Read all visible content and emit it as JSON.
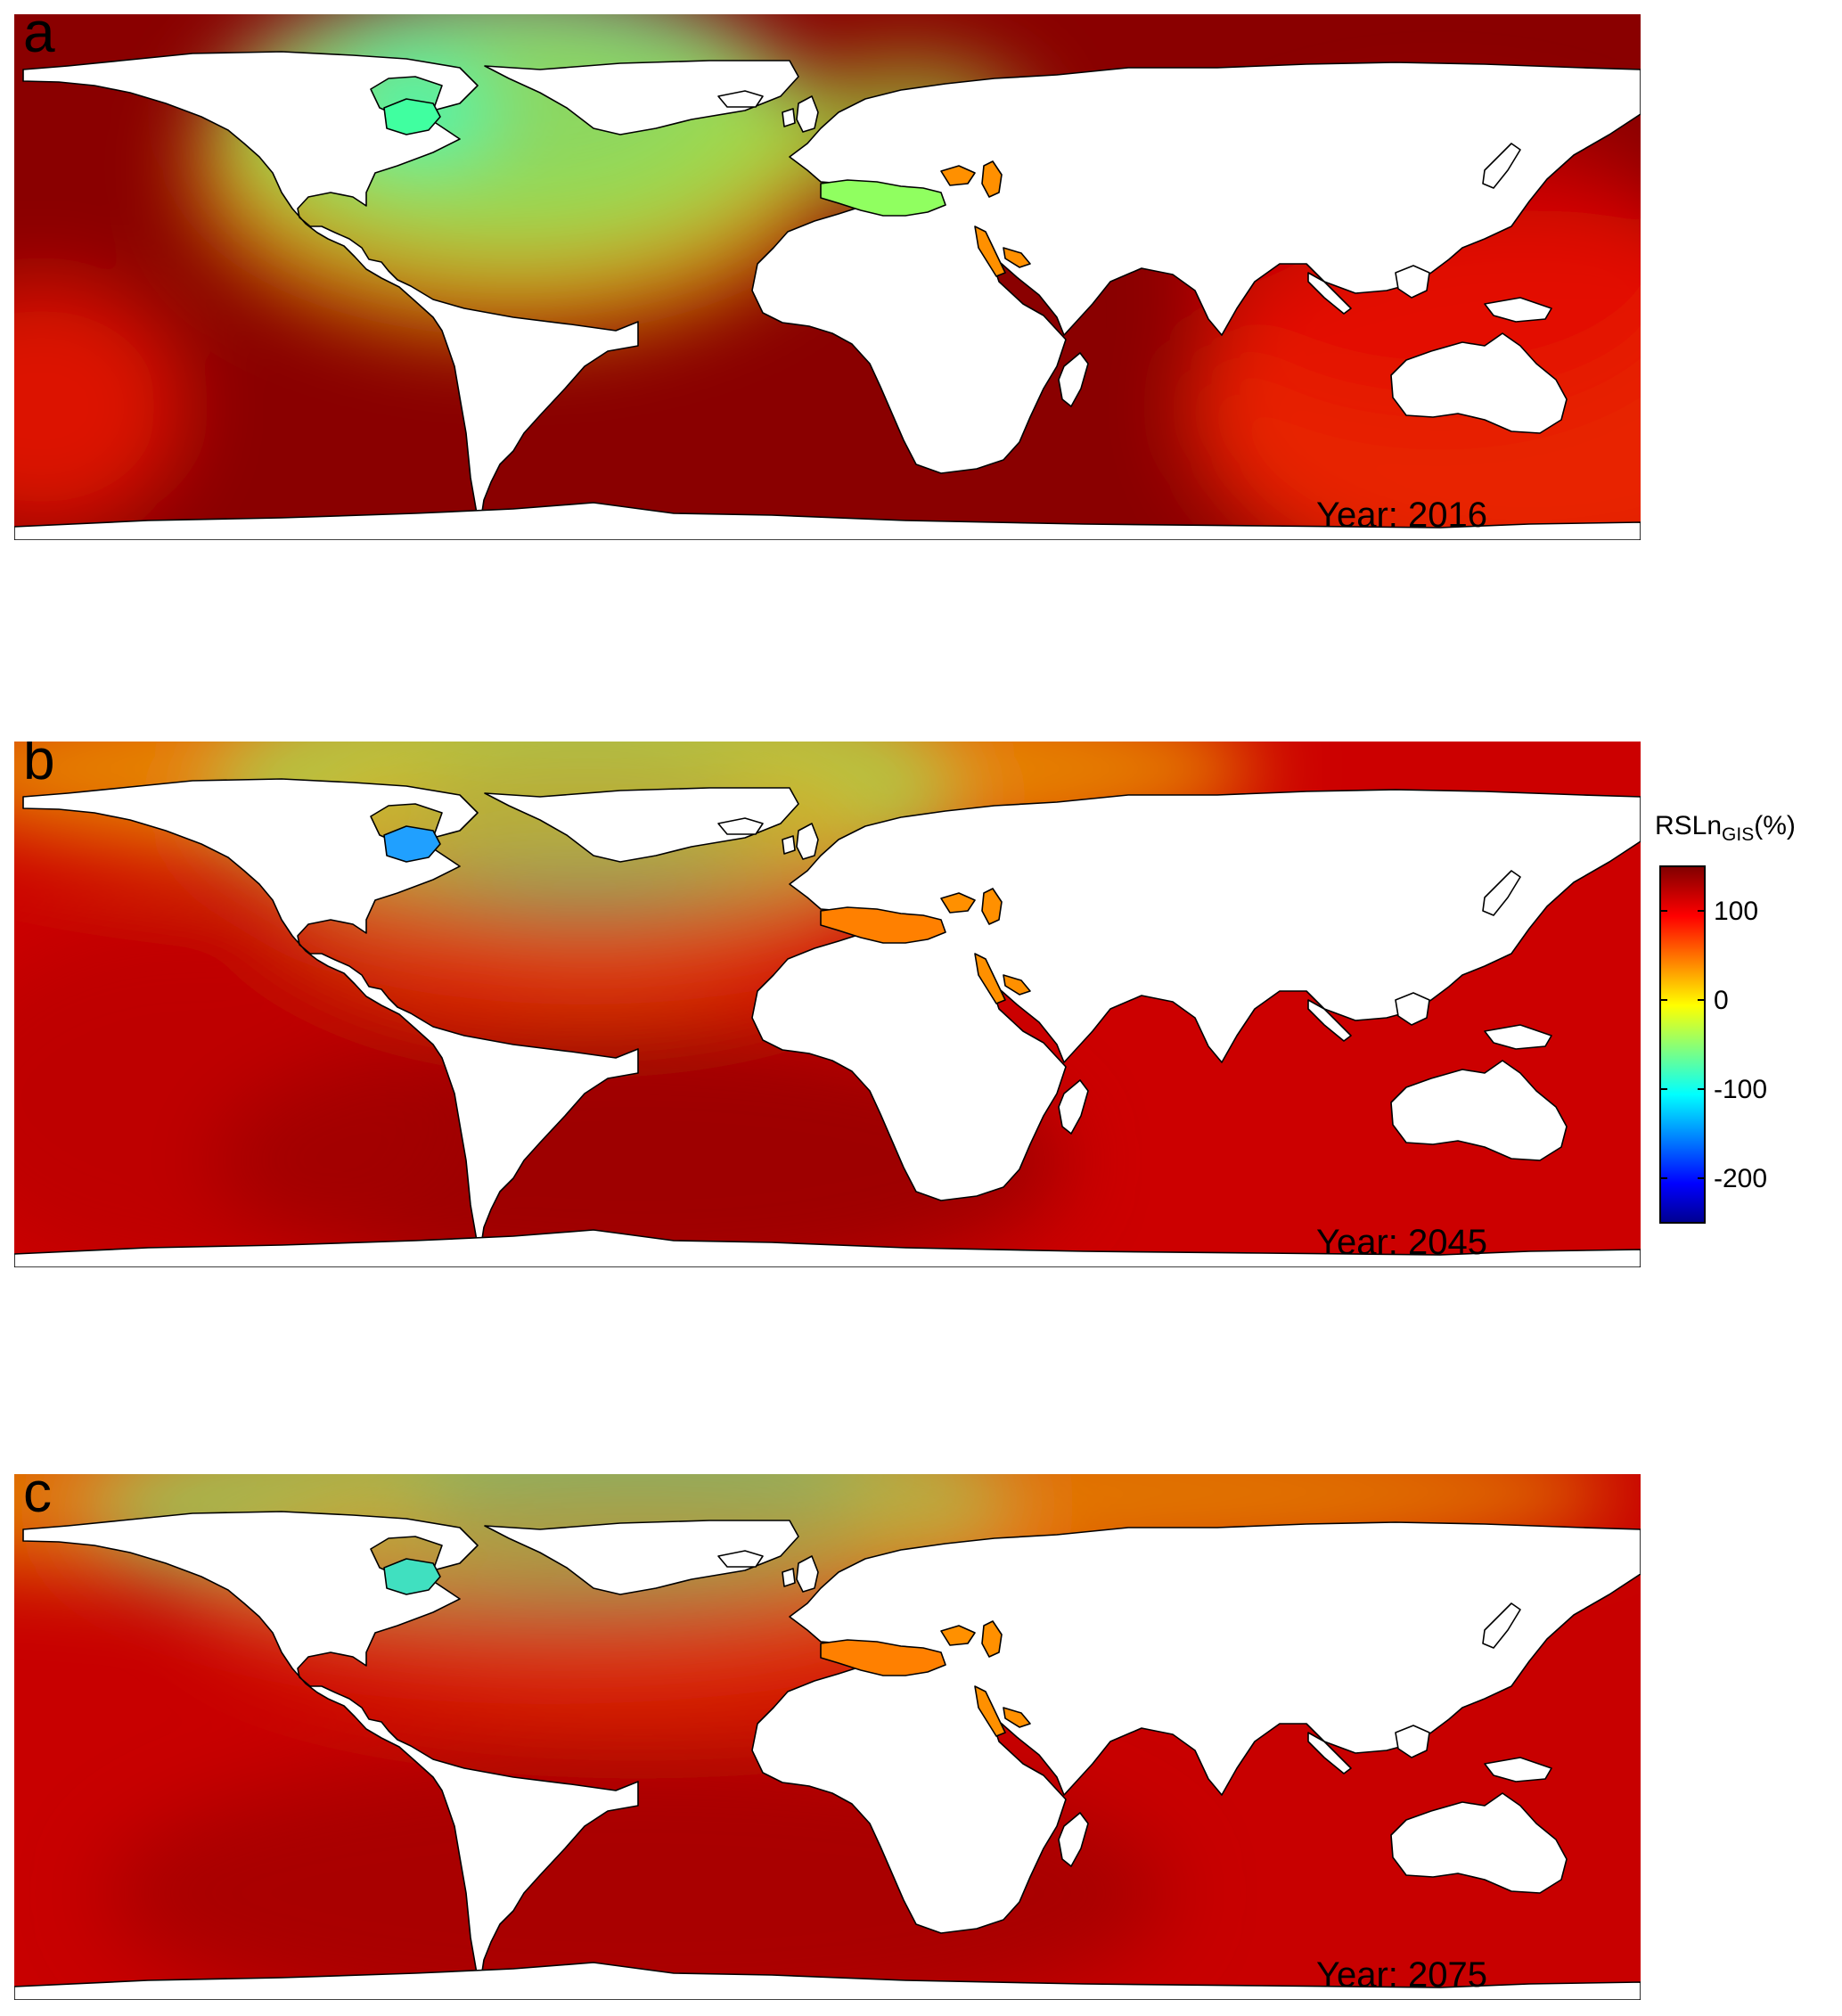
{
  "colorbar": {
    "title_main": "RSLn",
    "title_sub": "GIS",
    "title_unit": "(%)",
    "range": [
      -250,
      150
    ],
    "ticks": [
      100,
      0,
      -100,
      -200
    ],
    "tick_labels": [
      "100",
      "0",
      "-100",
      "-200"
    ],
    "colormap": "jet"
  },
  "panels": [
    {
      "letter": "a",
      "year_text": "Year: 2016",
      "year": 2016
    },
    {
      "letter": "b",
      "year_text": "Year: 2045",
      "year": 2045
    },
    {
      "letter": "c",
      "year_text": "Year: 2075",
      "year": 2075
    }
  ],
  "colors": {
    "land": "#ffffff",
    "coast": "#000000",
    "ocean_high": "#8b0000",
    "ocean_low": "#00008b"
  }
}
